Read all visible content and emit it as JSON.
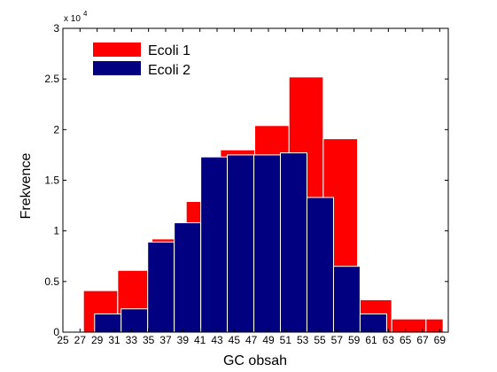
{
  "chart_data": {
    "type": "bar",
    "xlabel": "GC obsah",
    "ylabel": "Frekvence",
    "exponent_label": "x 10",
    "exponent_power": "4",
    "xlim": [
      25,
      70
    ],
    "ylim": [
      0,
      30000
    ],
    "xticks": [
      25,
      27,
      29,
      31,
      33,
      35,
      37,
      39,
      41,
      43,
      45,
      47,
      49,
      51,
      53,
      55,
      57,
      59,
      61,
      63,
      65,
      67,
      69
    ],
    "yticks": [
      0,
      5000,
      10000,
      15000,
      20000,
      25000,
      30000
    ],
    "ytick_labels": [
      "0",
      "0.5",
      "1",
      "1.5",
      "2",
      "2.5",
      "3"
    ],
    "legend_position": "top-left",
    "series": [
      {
        "name": "Ecoli 1",
        "color": "#ff0000",
        "bars": [
          {
            "x0": 27.4,
            "x1": 31.4,
            "value": 4100
          },
          {
            "x0": 31.4,
            "x1": 35.4,
            "value": 6100
          },
          {
            "x0": 35.4,
            "x1": 39.4,
            "value": 9200
          },
          {
            "x0": 39.4,
            "x1": 41.4,
            "value": 12900
          },
          {
            "x0": 41.4,
            "x1": 43.4,
            "value": 13000
          },
          {
            "x0": 43.4,
            "x1": 47.4,
            "value": 18000
          },
          {
            "x0": 47.4,
            "x1": 51.4,
            "value": 20400
          },
          {
            "x0": 51.4,
            "x1": 55.4,
            "value": 25200
          },
          {
            "x0": 55.4,
            "x1": 59.4,
            "value": 19100
          },
          {
            "x0": 59.4,
            "x1": 63.4,
            "value": 3200
          },
          {
            "x0": 63.4,
            "x1": 67.4,
            "value": 1300
          },
          {
            "x0": 67.4,
            "x1": 69.4,
            "value": 1300
          }
        ]
      },
      {
        "name": "Ecoli 2",
        "color": "#000080",
        "bars": [
          {
            "x0": 28.7,
            "x1": 31.8,
            "value": 1800
          },
          {
            "x0": 31.8,
            "x1": 34.9,
            "value": 2300
          },
          {
            "x0": 34.9,
            "x1": 38.0,
            "value": 8900
          },
          {
            "x0": 38.0,
            "x1": 41.1,
            "value": 10800
          },
          {
            "x0": 41.1,
            "x1": 44.2,
            "value": 17300
          },
          {
            "x0": 44.2,
            "x1": 47.3,
            "value": 17500
          },
          {
            "x0": 47.3,
            "x1": 50.4,
            "value": 17500
          },
          {
            "x0": 50.4,
            "x1": 53.5,
            "value": 17700
          },
          {
            "x0": 53.5,
            "x1": 56.6,
            "value": 13300
          },
          {
            "x0": 56.6,
            "x1": 59.7,
            "value": 6500
          },
          {
            "x0": 59.7,
            "x1": 62.8,
            "value": 1800
          }
        ]
      }
    ]
  }
}
